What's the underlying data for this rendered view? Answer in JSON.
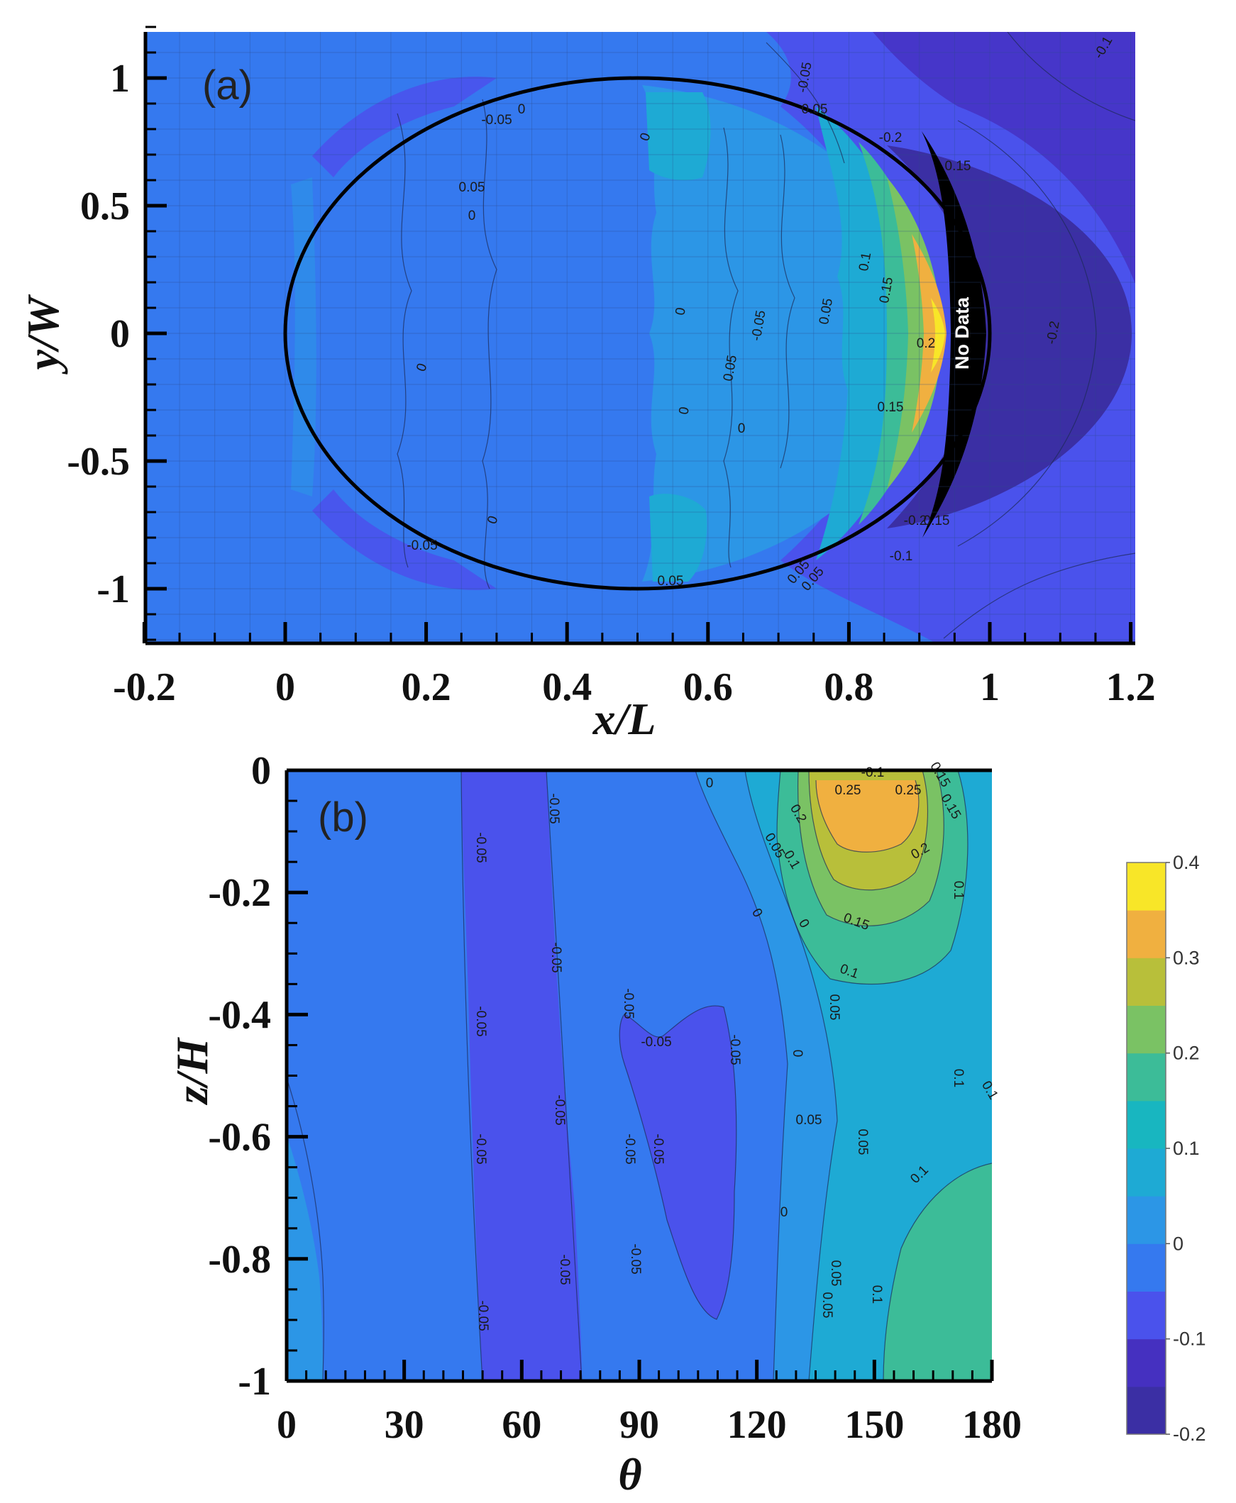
{
  "chart_data": [
    {
      "type": "contour",
      "panel_label": "(a)",
      "xlabel": "x/L",
      "ylabel": "y/W",
      "xlim": [
        -0.2,
        1.2
      ],
      "ylim": [
        -1.2,
        1.2
      ],
      "xticks": [
        "-0.2",
        "0",
        "0.2",
        "0.4",
        "0.6",
        "0.8",
        "1",
        "1.2"
      ],
      "yticks": [
        "1",
        "0.5",
        "0",
        "-0.5",
        "-1"
      ],
      "grid": true,
      "body_outline": {
        "shape": "ellipse",
        "center": [
          0.5,
          0
        ],
        "semi_axes": [
          0.5,
          1.0
        ]
      },
      "annotation": "No Data",
      "contour_labels": [
        "-0.1",
        "-0.05",
        "0.05",
        "-0.05",
        "0",
        "0.05",
        "0",
        "-0.2",
        "0.15",
        "0",
        "0",
        "0.1",
        "0.15",
        "0.05",
        "-0.05",
        "-0.2",
        "0",
        "0.05",
        "0.15",
        "0.2",
        "0",
        "0",
        "0",
        "-0.05",
        "0.05",
        "-0.2",
        "0.15",
        "-0.1",
        "0.05",
        "0.05"
      ]
    },
    {
      "type": "contour",
      "panel_label": "(b)",
      "xlabel": "θ",
      "ylabel": "z/H",
      "xlim": [
        0,
        180
      ],
      "ylim": [
        -1,
        0
      ],
      "xticks": [
        "0",
        "30",
        "60",
        "90",
        "120",
        "150",
        "180"
      ],
      "yticks": [
        "0",
        "-0.2",
        "-0.4",
        "-0.6",
        "-0.8",
        "-1"
      ],
      "contour_labels": [
        "-0.05",
        "-0.05",
        "-0.05",
        "-0.05",
        "-0.05",
        "-0.05",
        "-0.05",
        "-0.05",
        "-0.05",
        "-0.05",
        "-0.05",
        "-0.05",
        "-0.05",
        "-0.05",
        "0",
        "0",
        "0",
        "0",
        "0",
        "0.05",
        "0.05",
        "0.05",
        "0.05",
        "0.05",
        "0.1",
        "0.1",
        "0.1",
        "0.1",
        "0.1",
        "0.15",
        "0.15",
        "0.2",
        "0.2",
        "0.25",
        "0.25",
        "0.15",
        "-0.1",
        "0.1",
        "0.1",
        "0.05"
      ]
    }
  ],
  "colorbar": {
    "ticks": [
      "0.4",
      "0.3",
      "0.2",
      "0.1",
      "0",
      "-0.1",
      "-0.2"
    ],
    "min": -0.2,
    "max": 0.4,
    "levels": [
      {
        "from": -0.2,
        "to": -0.15,
        "color": "#3b2fa4"
      },
      {
        "from": -0.15,
        "to": -0.1,
        "color": "#4530c0"
      },
      {
        "from": -0.1,
        "to": -0.05,
        "color": "#4a52ec"
      },
      {
        "from": -0.05,
        "to": 0.0,
        "color": "#3579ef"
      },
      {
        "from": 0.0,
        "to": 0.05,
        "color": "#2c96e6"
      },
      {
        "from": 0.05,
        "to": 0.1,
        "color": "#1eaad4"
      },
      {
        "from": 0.1,
        "to": 0.15,
        "color": "#18b6c0"
      },
      {
        "from": 0.15,
        "to": 0.2,
        "color": "#3cbc98"
      },
      {
        "from": 0.2,
        "to": 0.25,
        "color": "#7ac264"
      },
      {
        "from": 0.25,
        "to": 0.3,
        "color": "#b8bf3a"
      },
      {
        "from": 0.3,
        "to": 0.35,
        "color": "#f0b040"
      },
      {
        "from": 0.35,
        "to": 0.4,
        "color": "#f8e628"
      }
    ]
  }
}
